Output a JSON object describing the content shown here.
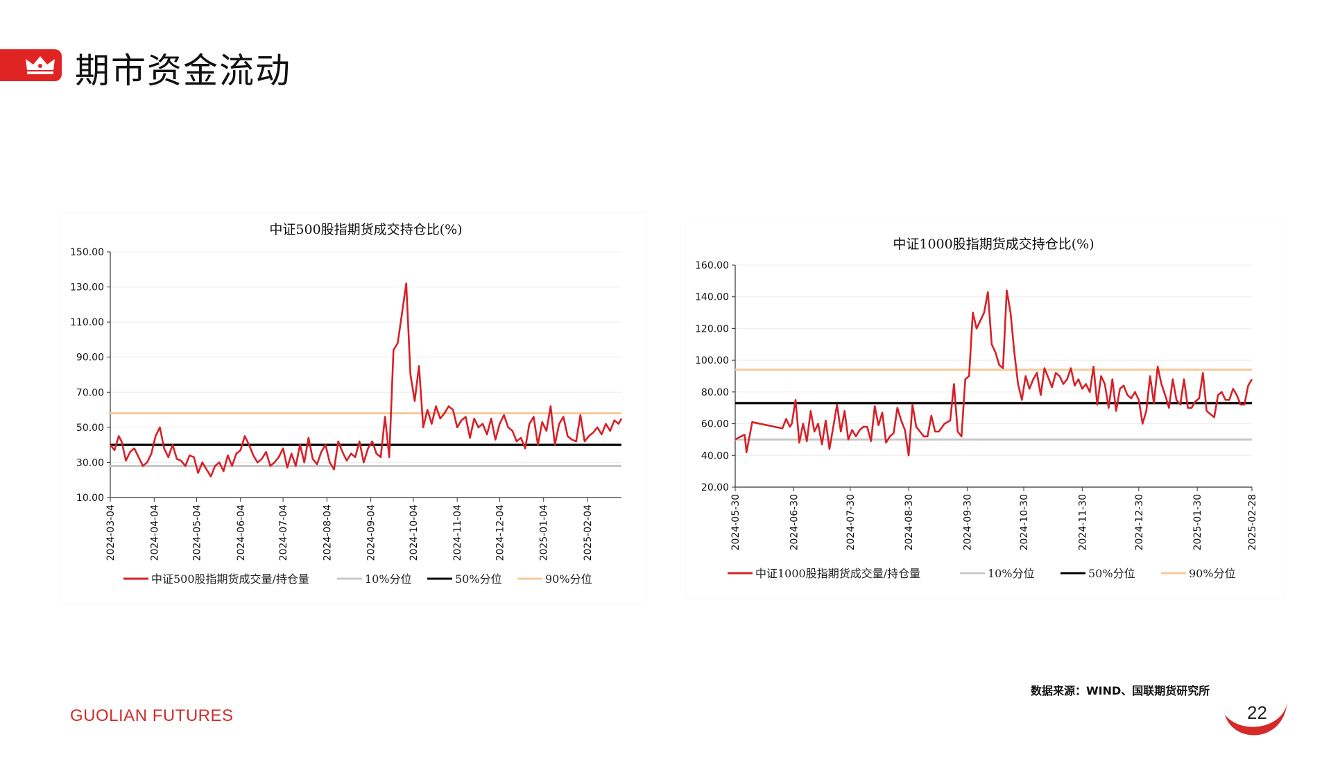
{
  "header": {
    "title": "期市资金流动"
  },
  "footer": {
    "source": "数据来源：WIND、国联期货研究所",
    "brand": "GUOLIAN FUTURES",
    "page_number": "22"
  },
  "colors": {
    "accent": "#e02424",
    "series": "#d72027",
    "p10": "#c8c8c8",
    "p50": "#000000",
    "p90": "#f6c99b"
  },
  "icons": {
    "header": "crown-icon"
  },
  "chart_data": [
    {
      "type": "line",
      "title": "中证500股指期货成交持仓比(%)",
      "x_range": [
        "2024-03-04",
        "2025-02-28"
      ],
      "x_ticks": [
        "2024-03-04",
        "2024-04-04",
        "2024-05-04",
        "2024-06-04",
        "2024-07-04",
        "2024-08-04",
        "2024-09-04",
        "2024-10-04",
        "2024-11-04",
        "2024-12-04",
        "2025-01-04",
        "2025-02-04"
      ],
      "ylim": [
        10,
        150
      ],
      "y_ticks": [
        "10.00",
        "30.00",
        "50.00",
        "70.00",
        "90.00",
        "110.00",
        "130.00",
        "150.00"
      ],
      "series": [
        {
          "name": "中证500股指期货成交量/持仓量",
          "kind": "data",
          "x": [
            "2024-03-04",
            "2024-03-07",
            "2024-03-10",
            "2024-03-12",
            "2024-03-15",
            "2024-03-18",
            "2024-03-21",
            "2024-03-24",
            "2024-03-27",
            "2024-03-30",
            "2024-04-02",
            "2024-04-05",
            "2024-04-08",
            "2024-04-11",
            "2024-04-14",
            "2024-04-17",
            "2024-04-20",
            "2024-04-23",
            "2024-04-26",
            "2024-04-29",
            "2024-05-02",
            "2024-05-05",
            "2024-05-08",
            "2024-05-11",
            "2024-05-14",
            "2024-05-17",
            "2024-05-20",
            "2024-05-23",
            "2024-05-26",
            "2024-05-29",
            "2024-06-01",
            "2024-06-04",
            "2024-06-07",
            "2024-06-10",
            "2024-06-13",
            "2024-06-16",
            "2024-06-19",
            "2024-06-22",
            "2024-06-25",
            "2024-06-28",
            "2024-07-01",
            "2024-07-04",
            "2024-07-07",
            "2024-07-10",
            "2024-07-13",
            "2024-07-16",
            "2024-07-19",
            "2024-07-22",
            "2024-07-25",
            "2024-07-28",
            "2024-07-31",
            "2024-08-03",
            "2024-08-06",
            "2024-08-09",
            "2024-08-12",
            "2024-08-15",
            "2024-08-18",
            "2024-08-21",
            "2024-08-24",
            "2024-08-27",
            "2024-08-30",
            "2024-09-02",
            "2024-09-05",
            "2024-09-08",
            "2024-09-11",
            "2024-09-14",
            "2024-09-17",
            "2024-09-20",
            "2024-09-23",
            "2024-09-26",
            "2024-09-29",
            "2024-10-02",
            "2024-10-05",
            "2024-10-08",
            "2024-10-11",
            "2024-10-14",
            "2024-10-17",
            "2024-10-20",
            "2024-10-23",
            "2024-10-26",
            "2024-10-29",
            "2024-11-01",
            "2024-11-04",
            "2024-11-07",
            "2024-11-10",
            "2024-11-13",
            "2024-11-16",
            "2024-11-19",
            "2024-11-22",
            "2024-11-25",
            "2024-11-28",
            "2024-12-01",
            "2024-12-04",
            "2024-12-07",
            "2024-12-10",
            "2024-12-13",
            "2024-12-16",
            "2024-12-19",
            "2024-12-22",
            "2024-12-25",
            "2024-12-28",
            "2024-12-31",
            "2025-01-03",
            "2025-01-06",
            "2025-01-09",
            "2025-01-12",
            "2025-01-15",
            "2025-01-18",
            "2025-01-21",
            "2025-01-24",
            "2025-01-27",
            "2025-01-30",
            "2025-02-02",
            "2025-02-05",
            "2025-02-08",
            "2025-02-11",
            "2025-02-14",
            "2025-02-17",
            "2025-02-20",
            "2025-02-23",
            "2025-02-26",
            "2025-02-28"
          ],
          "values": [
            40,
            37,
            45,
            42,
            31,
            36,
            38,
            33,
            28,
            30,
            35,
            45,
            50,
            38,
            33,
            40,
            32,
            31,
            28,
            34,
            33,
            24,
            30,
            26,
            22,
            28,
            30,
            25,
            34,
            28,
            35,
            37,
            45,
            40,
            34,
            30,
            32,
            36,
            28,
            30,
            33,
            38,
            27,
            35,
            28,
            40,
            30,
            44,
            32,
            29,
            36,
            40,
            30,
            26,
            42,
            36,
            31,
            35,
            33,
            42,
            30,
            38,
            42,
            35,
            33,
            56,
            33,
            94,
            98,
            115,
            132,
            80,
            65,
            85,
            50,
            60,
            52,
            62,
            55,
            58,
            62,
            60,
            50,
            54,
            56,
            44,
            55,
            50,
            52,
            46,
            55,
            43,
            52,
            57,
            50,
            48,
            42,
            44,
            38,
            52,
            56,
            40,
            53,
            48,
            62,
            40,
            52,
            56,
            45,
            43,
            42,
            57,
            42,
            45,
            47,
            50,
            46,
            52,
            48,
            54,
            52,
            55
          ]
        },
        {
          "name": "10%分位",
          "kind": "hline",
          "value": 28
        },
        {
          "name": "50%分位",
          "kind": "hline",
          "value": 40
        },
        {
          "name": "90%分位",
          "kind": "hline",
          "value": 58
        }
      ],
      "legend": "bottom"
    },
    {
      "type": "line",
      "title": "中证1000股指期货成交持仓比(%)",
      "x_range": [
        "2024-05-30",
        "2025-02-28"
      ],
      "x_ticks": [
        "2024-05-30",
        "2024-06-30",
        "2024-07-30",
        "2024-08-30",
        "2024-09-30",
        "2024-10-30",
        "2024-11-30",
        "2024-12-30",
        "2025-01-30",
        "2025-02-28"
      ],
      "ylim": [
        20,
        160
      ],
      "y_ticks": [
        "20.00",
        "40.00",
        "60.00",
        "80.00",
        "100.00",
        "120.00",
        "140.00",
        "160.00"
      ],
      "series": [
        {
          "name": "中证1000股指期货成交量/持仓量",
          "kind": "data",
          "x": [
            "2024-05-30",
            "2024-06-02",
            "2024-06-04",
            "2024-06-05",
            "2024-06-08",
            "2024-06-24",
            "2024-06-26",
            "2024-06-28",
            "2024-06-29",
            "2024-07-01",
            "2024-07-03",
            "2024-07-05",
            "2024-07-07",
            "2024-07-09",
            "2024-07-11",
            "2024-07-13",
            "2024-07-15",
            "2024-07-17",
            "2024-07-19",
            "2024-07-21",
            "2024-07-23",
            "2024-07-25",
            "2024-07-27",
            "2024-07-29",
            "2024-07-31",
            "2024-08-02",
            "2024-08-04",
            "2024-08-06",
            "2024-08-08",
            "2024-08-10",
            "2024-08-12",
            "2024-08-14",
            "2024-08-16",
            "2024-08-18",
            "2024-08-20",
            "2024-08-22",
            "2024-08-24",
            "2024-08-26",
            "2024-08-28",
            "2024-08-30",
            "2024-09-01",
            "2024-09-03",
            "2024-09-05",
            "2024-09-07",
            "2024-09-09",
            "2024-09-11",
            "2024-09-13",
            "2024-09-15",
            "2024-09-18",
            "2024-09-21",
            "2024-09-23",
            "2024-09-25",
            "2024-09-27",
            "2024-09-29",
            "2024-10-01",
            "2024-10-03",
            "2024-10-05",
            "2024-10-07",
            "2024-10-09",
            "2024-10-11",
            "2024-10-13",
            "2024-10-15",
            "2024-10-17",
            "2024-10-19",
            "2024-10-21",
            "2024-10-23",
            "2024-10-25",
            "2024-10-27",
            "2024-10-29",
            "2024-10-31",
            "2024-11-02",
            "2024-11-04",
            "2024-11-06",
            "2024-11-08",
            "2024-11-10",
            "2024-11-12",
            "2024-11-14",
            "2024-11-16",
            "2024-11-18",
            "2024-11-20",
            "2024-11-22",
            "2024-11-24",
            "2024-11-26",
            "2024-11-28",
            "2024-11-30",
            "2024-12-02",
            "2024-12-04",
            "2024-12-06",
            "2024-12-08",
            "2024-12-10",
            "2024-12-12",
            "2024-12-14",
            "2024-12-16",
            "2024-12-18",
            "2024-12-20",
            "2024-12-22",
            "2024-12-24",
            "2024-12-26",
            "2024-12-28",
            "2024-12-30",
            "2025-01-01",
            "2025-01-03",
            "2025-01-05",
            "2025-01-07",
            "2025-01-09",
            "2025-01-11",
            "2025-01-13",
            "2025-01-15",
            "2025-01-17",
            "2025-01-19",
            "2025-01-21",
            "2025-01-23",
            "2025-01-25",
            "2025-01-27",
            "2025-01-29",
            "2025-01-31",
            "2025-02-02",
            "2025-02-04",
            "2025-02-06",
            "2025-02-08",
            "2025-02-10",
            "2025-02-12",
            "2025-02-14",
            "2025-02-16",
            "2025-02-18",
            "2025-02-20",
            "2025-02-22",
            "2025-02-24",
            "2025-02-26",
            "2025-02-28"
          ],
          "values": [
            50,
            52,
            53,
            42,
            61,
            57,
            63,
            58,
            60,
            75,
            48,
            60,
            49,
            68,
            55,
            60,
            47,
            62,
            44,
            58,
            72,
            55,
            68,
            50,
            56,
            52,
            56,
            58,
            58,
            49,
            71,
            59,
            67,
            48,
            52,
            54,
            70,
            62,
            56,
            40,
            72,
            58,
            55,
            52,
            52,
            65,
            55,
            55,
            60,
            62,
            85,
            55,
            52,
            88,
            90,
            130,
            120,
            125,
            130,
            143,
            110,
            105,
            97,
            95,
            144,
            130,
            105,
            85,
            75,
            90,
            82,
            88,
            92,
            78,
            95,
            89,
            83,
            92,
            90,
            85,
            88,
            95,
            84,
            88,
            82,
            85,
            80,
            96,
            72,
            90,
            85,
            70,
            88,
            68,
            82,
            84,
            78,
            76,
            80,
            75,
            60,
            68,
            90,
            73,
            96,
            85,
            78,
            70,
            88,
            75,
            72,
            88,
            70,
            70,
            74,
            76,
            92,
            68,
            66,
            64,
            78,
            80,
            75,
            75,
            82,
            78,
            72,
            72,
            84,
            88
          ]
        },
        {
          "name": "10%分位",
          "kind": "hline",
          "value": 50
        },
        {
          "name": "50%分位",
          "kind": "hline",
          "value": 73
        },
        {
          "name": "90%分位",
          "kind": "hline",
          "value": 94
        }
      ],
      "legend": "bottom"
    }
  ]
}
